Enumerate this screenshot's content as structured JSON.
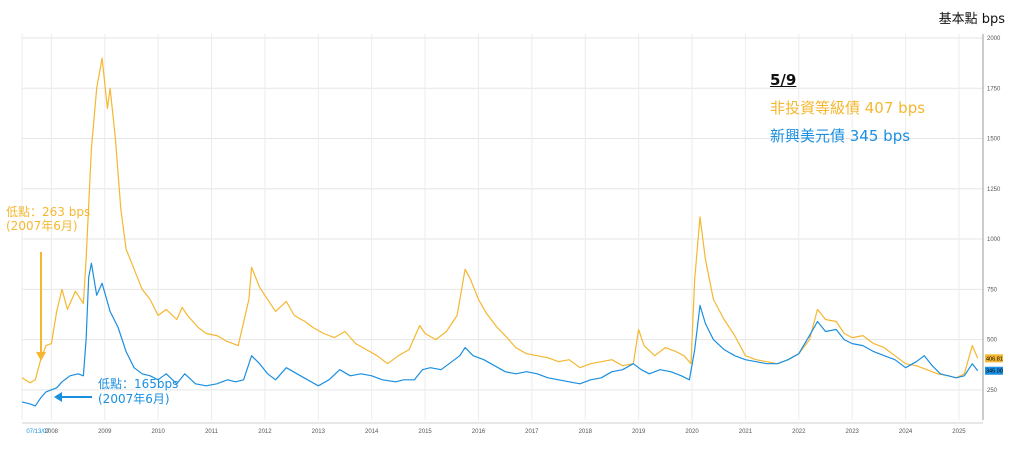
{
  "unit_label": "基本點 bps",
  "legend": {
    "date": "5/9",
    "hy_label": "非投資等級債 407 bps",
    "em_label": "新興美元債 345 bps"
  },
  "annotations": {
    "hy_low_1": "低點：263 bps",
    "hy_low_2": "(2007年6月)",
    "em_low_1": "低點：165bps",
    "em_low_2": "(2007年6月)"
  },
  "chart_data": {
    "type": "line",
    "xlim": [
      2007.45,
      2025.45
    ],
    "ylim": [
      100,
      2000
    ],
    "y_ticks": [
      250,
      500,
      750,
      1000,
      1250,
      1500,
      1750,
      2000
    ],
    "x_tick_labels": [
      {
        "x": 2007.45,
        "label": "07/13/07"
      },
      {
        "x": 2008,
        "label": "2008"
      },
      {
        "x": 2009,
        "label": "2009"
      },
      {
        "x": 2010,
        "label": "2010"
      },
      {
        "x": 2011,
        "label": "2011"
      },
      {
        "x": 2012,
        "label": "2012"
      },
      {
        "x": 2013,
        "label": "2013"
      },
      {
        "x": 2014,
        "label": "2014"
      },
      {
        "x": 2015,
        "label": "2015"
      },
      {
        "x": 2016,
        "label": "2016"
      },
      {
        "x": 2017,
        "label": "2017"
      },
      {
        "x": 2018,
        "label": "2018"
      },
      {
        "x": 2019,
        "label": "2019"
      },
      {
        "x": 2020,
        "label": "2020"
      },
      {
        "x": 2021,
        "label": "2021"
      },
      {
        "x": 2022,
        "label": "2022"
      },
      {
        "x": 2023,
        "label": "2023"
      },
      {
        "x": 2024,
        "label": "2024"
      },
      {
        "x": 2025,
        "label": "2025"
      }
    ],
    "grid": true,
    "series": [
      {
        "name": "非投資等級債",
        "color": "#f5b731",
        "end_label": "406.81",
        "points": [
          [
            2007.45,
            310
          ],
          [
            2007.6,
            285
          ],
          [
            2007.7,
            300
          ],
          [
            2007.8,
            400
          ],
          [
            2007.9,
            470
          ],
          [
            2008.0,
            480
          ],
          [
            2008.1,
            640
          ],
          [
            2008.2,
            750
          ],
          [
            2008.3,
            650
          ],
          [
            2008.45,
            740
          ],
          [
            2008.6,
            680
          ],
          [
            2008.65,
            900
          ],
          [
            2008.75,
            1450
          ],
          [
            2008.85,
            1750
          ],
          [
            2008.95,
            1900
          ],
          [
            2009.05,
            1650
          ],
          [
            2009.1,
            1750
          ],
          [
            2009.2,
            1500
          ],
          [
            2009.3,
            1150
          ],
          [
            2009.4,
            950
          ],
          [
            2009.55,
            850
          ],
          [
            2009.7,
            750
          ],
          [
            2009.85,
            700
          ],
          [
            2010.0,
            620
          ],
          [
            2010.15,
            650
          ],
          [
            2010.35,
            600
          ],
          [
            2010.45,
            660
          ],
          [
            2010.55,
            620
          ],
          [
            2010.75,
            560
          ],
          [
            2010.9,
            530
          ],
          [
            2011.1,
            520
          ],
          [
            2011.3,
            490
          ],
          [
            2011.5,
            470
          ],
          [
            2011.7,
            700
          ],
          [
            2011.75,
            860
          ],
          [
            2011.9,
            760
          ],
          [
            2012.05,
            700
          ],
          [
            2012.2,
            640
          ],
          [
            2012.4,
            690
          ],
          [
            2012.55,
            620
          ],
          [
            2012.75,
            590
          ],
          [
            2012.9,
            560
          ],
          [
            2013.1,
            530
          ],
          [
            2013.3,
            510
          ],
          [
            2013.5,
            540
          ],
          [
            2013.7,
            480
          ],
          [
            2013.9,
            450
          ],
          [
            2014.1,
            420
          ],
          [
            2014.3,
            380
          ],
          [
            2014.5,
            420
          ],
          [
            2014.7,
            450
          ],
          [
            2014.9,
            570
          ],
          [
            2015.0,
            530
          ],
          [
            2015.2,
            500
          ],
          [
            2015.4,
            540
          ],
          [
            2015.6,
            620
          ],
          [
            2015.75,
            850
          ],
          [
            2015.85,
            800
          ],
          [
            2016.0,
            700
          ],
          [
            2016.15,
            630
          ],
          [
            2016.35,
            560
          ],
          [
            2016.5,
            520
          ],
          [
            2016.7,
            460
          ],
          [
            2016.9,
            430
          ],
          [
            2017.1,
            420
          ],
          [
            2017.3,
            410
          ],
          [
            2017.5,
            390
          ],
          [
            2017.7,
            400
          ],
          [
            2017.9,
            360
          ],
          [
            2018.1,
            380
          ],
          [
            2018.3,
            390
          ],
          [
            2018.5,
            400
          ],
          [
            2018.7,
            370
          ],
          [
            2018.9,
            380
          ],
          [
            2019.0,
            550
          ],
          [
            2019.1,
            470
          ],
          [
            2019.3,
            420
          ],
          [
            2019.5,
            460
          ],
          [
            2019.7,
            440
          ],
          [
            2019.85,
            420
          ],
          [
            2019.98,
            380
          ],
          [
            2020.05,
            800
          ],
          [
            2020.15,
            1110
          ],
          [
            2020.25,
            900
          ],
          [
            2020.4,
            700
          ],
          [
            2020.6,
            600
          ],
          [
            2020.8,
            520
          ],
          [
            2021.0,
            420
          ],
          [
            2021.2,
            400
          ],
          [
            2021.4,
            390
          ],
          [
            2021.6,
            380
          ],
          [
            2021.8,
            400
          ],
          [
            2022.0,
            430
          ],
          [
            2022.2,
            500
          ],
          [
            2022.35,
            650
          ],
          [
            2022.5,
            600
          ],
          [
            2022.7,
            590
          ],
          [
            2022.85,
            530
          ],
          [
            2023.0,
            510
          ],
          [
            2023.2,
            520
          ],
          [
            2023.4,
            480
          ],
          [
            2023.6,
            460
          ],
          [
            2023.8,
            420
          ],
          [
            2024.0,
            380
          ],
          [
            2024.2,
            370
          ],
          [
            2024.4,
            350
          ],
          [
            2024.6,
            330
          ],
          [
            2024.8,
            320
          ],
          [
            2024.95,
            310
          ],
          [
            2025.1,
            330
          ],
          [
            2025.25,
            470
          ],
          [
            2025.35,
            406.81
          ]
        ]
      },
      {
        "name": "新興美元債",
        "color": "#1a8fe0",
        "end_label": "345.00",
        "points": [
          [
            2007.45,
            190
          ],
          [
            2007.6,
            180
          ],
          [
            2007.7,
            170
          ],
          [
            2007.8,
            210
          ],
          [
            2007.9,
            240
          ],
          [
            2008.0,
            250
          ],
          [
            2008.1,
            260
          ],
          [
            2008.2,
            290
          ],
          [
            2008.35,
            320
          ],
          [
            2008.5,
            330
          ],
          [
            2008.6,
            320
          ],
          [
            2008.65,
            500
          ],
          [
            2008.7,
            810
          ],
          [
            2008.75,
            880
          ],
          [
            2008.85,
            720
          ],
          [
            2008.95,
            780
          ],
          [
            2009.1,
            640
          ],
          [
            2009.25,
            560
          ],
          [
            2009.4,
            440
          ],
          [
            2009.55,
            360
          ],
          [
            2009.7,
            330
          ],
          [
            2009.85,
            320
          ],
          [
            2010.0,
            300
          ],
          [
            2010.15,
            330
          ],
          [
            2010.35,
            280
          ],
          [
            2010.5,
            330
          ],
          [
            2010.7,
            280
          ],
          [
            2010.9,
            270
          ],
          [
            2011.1,
            280
          ],
          [
            2011.3,
            300
          ],
          [
            2011.45,
            290
          ],
          [
            2011.6,
            300
          ],
          [
            2011.75,
            420
          ],
          [
            2011.9,
            380
          ],
          [
            2012.05,
            330
          ],
          [
            2012.2,
            300
          ],
          [
            2012.4,
            360
          ],
          [
            2012.6,
            330
          ],
          [
            2012.8,
            300
          ],
          [
            2013.0,
            270
          ],
          [
            2013.2,
            300
          ],
          [
            2013.4,
            350
          ],
          [
            2013.6,
            320
          ],
          [
            2013.8,
            330
          ],
          [
            2014.0,
            320
          ],
          [
            2014.2,
            300
          ],
          [
            2014.45,
            290
          ],
          [
            2014.6,
            300
          ],
          [
            2014.8,
            300
          ],
          [
            2014.95,
            350
          ],
          [
            2015.1,
            360
          ],
          [
            2015.3,
            350
          ],
          [
            2015.5,
            390
          ],
          [
            2015.65,
            420
          ],
          [
            2015.75,
            460
          ],
          [
            2015.9,
            420
          ],
          [
            2016.1,
            400
          ],
          [
            2016.3,
            370
          ],
          [
            2016.5,
            340
          ],
          [
            2016.7,
            330
          ],
          [
            2016.9,
            340
          ],
          [
            2017.1,
            330
          ],
          [
            2017.3,
            310
          ],
          [
            2017.5,
            300
          ],
          [
            2017.7,
            290
          ],
          [
            2017.9,
            280
          ],
          [
            2018.1,
            300
          ],
          [
            2018.3,
            310
          ],
          [
            2018.5,
            340
          ],
          [
            2018.7,
            350
          ],
          [
            2018.9,
            380
          ],
          [
            2019.05,
            350
          ],
          [
            2019.2,
            330
          ],
          [
            2019.4,
            350
          ],
          [
            2019.6,
            340
          ],
          [
            2019.8,
            320
          ],
          [
            2019.95,
            300
          ],
          [
            2020.05,
            450
          ],
          [
            2020.15,
            670
          ],
          [
            2020.25,
            580
          ],
          [
            2020.4,
            500
          ],
          [
            2020.6,
            450
          ],
          [
            2020.8,
            420
          ],
          [
            2021.0,
            400
          ],
          [
            2021.2,
            390
          ],
          [
            2021.4,
            380
          ],
          [
            2021.6,
            380
          ],
          [
            2021.8,
            400
          ],
          [
            2022.0,
            430
          ],
          [
            2022.2,
            520
          ],
          [
            2022.35,
            590
          ],
          [
            2022.5,
            540
          ],
          [
            2022.7,
            550
          ],
          [
            2022.85,
            500
          ],
          [
            2023.0,
            480
          ],
          [
            2023.2,
            470
          ],
          [
            2023.4,
            440
          ],
          [
            2023.6,
            420
          ],
          [
            2023.8,
            400
          ],
          [
            2024.0,
            360
          ],
          [
            2024.2,
            390
          ],
          [
            2024.35,
            420
          ],
          [
            2024.5,
            370
          ],
          [
            2024.65,
            330
          ],
          [
            2024.8,
            320
          ],
          [
            2024.95,
            310
          ],
          [
            2025.1,
            320
          ],
          [
            2025.25,
            380
          ],
          [
            2025.35,
            345
          ]
        ]
      }
    ]
  }
}
